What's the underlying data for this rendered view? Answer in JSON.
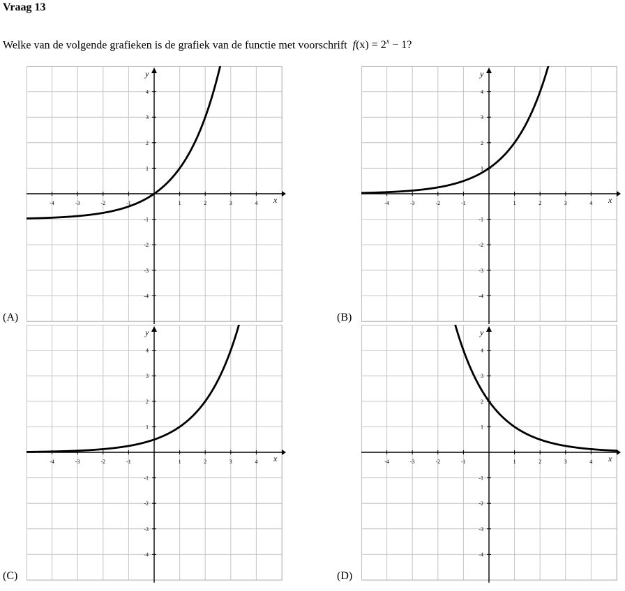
{
  "question": {
    "title": "Vraag 13",
    "text": "Welke van de volgende grafieken is de grafiek van de functie met voorschrift",
    "formula_f": "f",
    "formula_x": "(x) = 2",
    "formula_exp": "x",
    "formula_tail": " − 1?"
  },
  "axes": {
    "x_label": "x",
    "y_label": "y",
    "x_ticks": [
      "-4",
      "-3",
      "-2",
      "-1",
      "1",
      "2",
      "3",
      "4"
    ],
    "y_ticks": [
      "4",
      "3",
      "2",
      "1",
      "-1",
      "-2",
      "-3",
      "-4"
    ]
  },
  "options": [
    {
      "label": "(A)",
      "function": "2^x - 1"
    },
    {
      "label": "(B)",
      "function": "2^x"
    },
    {
      "label": "(C)",
      "function": "2^(x-1)"
    },
    {
      "label": "(D)",
      "function": "2^(-x+1)"
    }
  ],
  "chart_data": [
    {
      "type": "line",
      "option": "(A)",
      "xlim": [
        -5,
        5
      ],
      "ylim": [
        -5,
        5
      ],
      "grid": true,
      "x": [
        -5,
        -4,
        -3,
        -2,
        -1,
        0,
        1,
        2,
        2.58
      ],
      "y": [
        -0.97,
        -0.94,
        -0.88,
        -0.75,
        -0.5,
        0,
        1,
        3,
        5
      ]
    },
    {
      "type": "line",
      "option": "(B)",
      "xlim": [
        -5,
        5
      ],
      "ylim": [
        -5,
        5
      ],
      "grid": true,
      "x": [
        -5,
        -4,
        -3,
        -2,
        -1,
        0,
        1,
        2,
        2.32
      ],
      "y": [
        0.03,
        0.06,
        0.13,
        0.25,
        0.5,
        1,
        2,
        4,
        5
      ]
    },
    {
      "type": "line",
      "option": "(C)",
      "xlim": [
        -5,
        5
      ],
      "ylim": [
        -5,
        5
      ],
      "grid": true,
      "x": [
        -5,
        -4,
        -3,
        -2,
        -1,
        0,
        1,
        2,
        3,
        3.32
      ],
      "y": [
        0.02,
        0.03,
        0.06,
        0.13,
        0.25,
        0.5,
        1,
        2,
        4,
        5
      ]
    },
    {
      "type": "line",
      "option": "(D)",
      "xlim": [
        -5,
        5
      ],
      "ylim": [
        -5,
        5
      ],
      "grid": true,
      "x": [
        -1.32,
        -1,
        0,
        1,
        2,
        3,
        4,
        5
      ],
      "y": [
        5,
        4,
        2,
        1,
        0.5,
        0.25,
        0.13,
        0.06
      ]
    }
  ]
}
